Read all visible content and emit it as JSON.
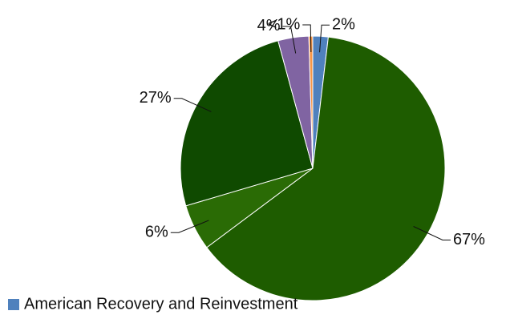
{
  "chart_data": {
    "type": "pie",
    "categories": [
      "American Recovery and Reinvestment",
      null,
      null,
      null,
      null,
      null
    ],
    "values": [
      2,
      67,
      6,
      27,
      4,
      0.5
    ],
    "value_labels": [
      "2%",
      "67%",
      "6%",
      "27%",
      "4%",
      "<1%"
    ],
    "colors": [
      "#4f81bd",
      "#1e5c00",
      "#2a6b05",
      "#0f4a00",
      "#8064a2",
      "#f79646"
    ]
  }
}
